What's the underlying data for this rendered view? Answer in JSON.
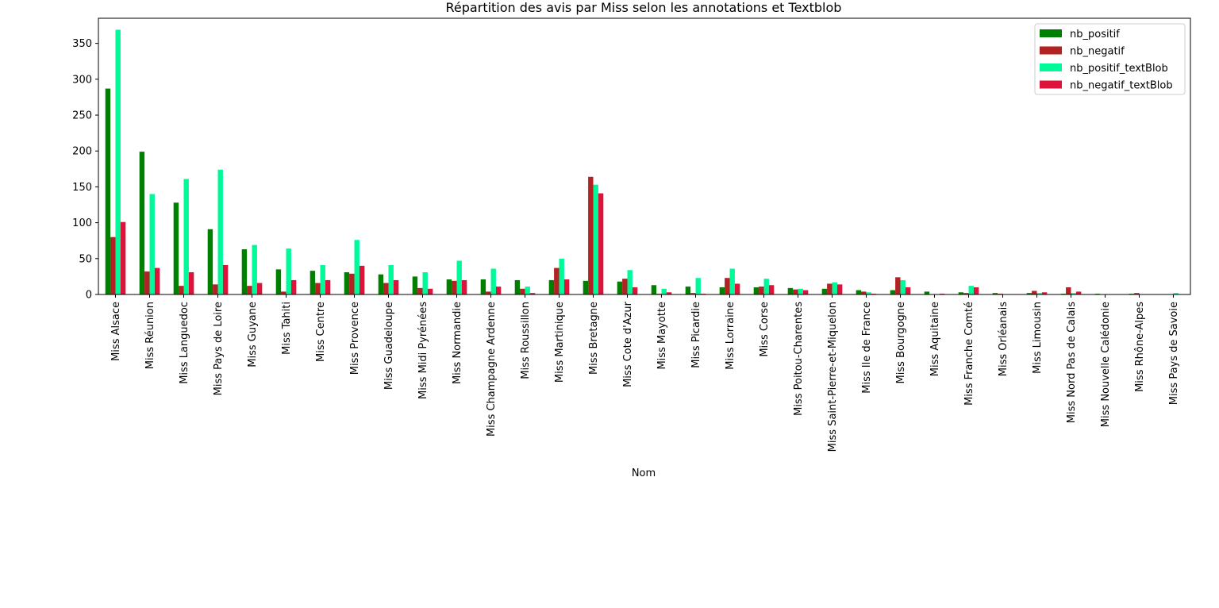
{
  "chart_data": {
    "type": "bar",
    "title": "Répartition des avis par Miss selon les annotations et Textblob",
    "xlabel": "Nom",
    "ylabel": "",
    "ylim": [
      0,
      385
    ],
    "yticks": [
      0,
      50,
      100,
      150,
      200,
      250,
      300,
      350
    ],
    "grid": false,
    "legend_position": "top-right",
    "categories": [
      "Miss Alsace",
      "Miss Réunion",
      "Miss Languedoc",
      "Miss Pays de Loire",
      "Miss Guyane",
      "Miss Tahiti",
      "Miss Centre",
      "Miss Provence",
      "Miss Guadeloupe",
      "Miss Midi Pyrénées",
      "Miss Normandie",
      "Miss Champagne Ardenne",
      "Miss Roussillon",
      "Miss Martinique",
      "Miss Bretagne",
      "Miss Cote d'Azur",
      "Miss Mayotte",
      "Miss Picardie",
      "Miss Lorraine",
      "Miss Corse",
      "Miss Poitou-Charentes",
      "Miss Saint-Pierre-et-Miquelon",
      "Miss Ile de France",
      "Miss Bourgogne",
      "Miss Aquitaine",
      "Miss Franche Comté",
      "Miss Orléanais",
      "Miss Limousin",
      "Miss Nord Pas de Calais",
      "Miss Nouvelle Calédonie",
      "Miss Rhône-Alpes",
      "Miss Pays de Savoie"
    ],
    "series": [
      {
        "name": "nb_positif",
        "color": "#008000",
        "values": [
          287,
          199,
          128,
          91,
          63,
          35,
          33,
          31,
          28,
          25,
          21,
          21,
          20,
          20,
          19,
          18,
          13,
          11,
          10,
          10,
          9,
          8,
          6,
          6,
          4,
          3,
          2,
          2,
          1,
          1,
          1,
          0
        ]
      },
      {
        "name": "nb_negatif",
        "color": "#b22222",
        "values": [
          80,
          32,
          12,
          14,
          12,
          4,
          16,
          29,
          16,
          9,
          19,
          4,
          8,
          37,
          164,
          22,
          1,
          2,
          23,
          11,
          7,
          15,
          4,
          24,
          0,
          2,
          1,
          5,
          10,
          0,
          2,
          0
        ]
      },
      {
        "name": "nb_positif_textBlob",
        "color": "#00fa9a",
        "values": [
          369,
          140,
          161,
          174,
          69,
          64,
          41,
          76,
          41,
          31,
          47,
          36,
          11,
          50,
          153,
          34,
          8,
          23,
          36,
          22,
          8,
          17,
          3,
          20,
          0,
          12,
          0,
          2,
          2,
          0,
          0,
          2
        ]
      },
      {
        "name": "nb_negatif_textBlob",
        "color": "#dc143c",
        "values": [
          101,
          37,
          31,
          41,
          16,
          20,
          20,
          40,
          20,
          8,
          20,
          11,
          2,
          21,
          141,
          10,
          3,
          1,
          15,
          13,
          6,
          14,
          1,
          10,
          1,
          10,
          0,
          3,
          4,
          0,
          0,
          0
        ]
      }
    ]
  }
}
